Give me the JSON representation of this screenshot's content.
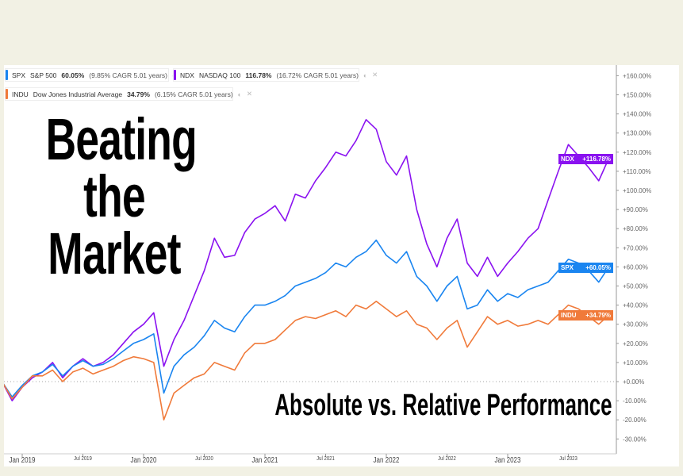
{
  "title": "Beating the Market",
  "subtitle": "Absolute vs. Relative Performance",
  "legend": [
    {
      "ticker": "SPX",
      "name": "S&P 500",
      "pct": "60.05%",
      "cagr": "(9.85% CAGR 5.01 years)",
      "color": "#1a85f0"
    },
    {
      "ticker": "NDX",
      "name": "NASDAQ 100",
      "pct": "116.78%",
      "cagr": "(16.72% CAGR 5.01 years)",
      "color": "#8a12f0"
    },
    {
      "ticker": "INDU",
      "name": "Dow Jones Industrial Average",
      "pct": "34.79%",
      "cagr": "(6.15% CAGR 5.01 years)",
      "color": "#f07a3a"
    }
  ],
  "end_labels": [
    {
      "ticker": "NDX",
      "value": "+116.78%",
      "color": "#8a12f0"
    },
    {
      "ticker": "SPX",
      "value": "+60.05%",
      "color": "#1a85f0"
    },
    {
      "ticker": "INDU",
      "value": "+34.79%",
      "color": "#f07a3a"
    }
  ],
  "chart_data": {
    "type": "line",
    "ylim": [
      -30,
      160
    ],
    "y_ticks": [
      "+160.00%",
      "+150.00%",
      "+140.00%",
      "+130.00%",
      "+120.00%",
      "+110.00%",
      "+100.00%",
      "+90.00%",
      "+80.00%",
      "+70.00%",
      "+60.00%",
      "+50.00%",
      "+40.00%",
      "+30.00%",
      "+20.00%",
      "+10.00%",
      "+0.00%",
      "-10.00%",
      "-20.00%",
      "-30.00%"
    ],
    "x_ticks": [
      {
        "label": "Jan 2019",
        "date": "2019-01",
        "major": true
      },
      {
        "label": "Jul 2019",
        "date": "2019-07",
        "major": false
      },
      {
        "label": "Jan 2020",
        "date": "2020-01",
        "major": true
      },
      {
        "label": "Jul 2020",
        "date": "2020-07",
        "major": false
      },
      {
        "label": "Jan 2021",
        "date": "2021-01",
        "major": true
      },
      {
        "label": "Jul 2021",
        "date": "2021-07",
        "major": false
      },
      {
        "label": "Jan 2022",
        "date": "2022-01",
        "major": true
      },
      {
        "label": "Jul 2022",
        "date": "2022-07",
        "major": false
      },
      {
        "label": "Jan 2023",
        "date": "2023-01",
        "major": true
      },
      {
        "label": "Jul 2023",
        "date": "2023-07",
        "major": false
      }
    ],
    "x_start": "2018-11",
    "series": [
      {
        "name": "NDX",
        "color": "#8a12f0",
        "values": [
          0,
          -10,
          -3,
          2,
          5,
          10,
          2,
          8,
          12,
          8,
          10,
          14,
          20,
          26,
          30,
          36,
          8,
          22,
          32,
          45,
          58,
          75,
          65,
          66,
          78,
          85,
          88,
          92,
          84,
          98,
          96,
          105,
          112,
          120,
          118,
          126,
          137,
          132,
          115,
          108,
          118,
          90,
          72,
          60,
          75,
          85,
          62,
          55,
          65,
          55,
          62,
          68,
          75,
          80,
          95,
          110,
          124,
          118,
          112,
          105,
          116.78
        ]
      },
      {
        "name": "SPX",
        "color": "#1a85f0",
        "values": [
          0,
          -8,
          -2,
          3,
          5,
          9,
          3,
          8,
          11,
          8,
          9,
          12,
          16,
          20,
          22,
          25,
          -6,
          8,
          14,
          18,
          24,
          32,
          28,
          26,
          34,
          40,
          40,
          42,
          45,
          50,
          52,
          54,
          57,
          62,
          60,
          65,
          68,
          74,
          66,
          62,
          68,
          55,
          50,
          42,
          50,
          55,
          38,
          40,
          48,
          42,
          46,
          44,
          48,
          50,
          52,
          58,
          64,
          62,
          58,
          52,
          60.05
        ]
      },
      {
        "name": "INDU",
        "color": "#f07a3a",
        "values": [
          0,
          -9,
          -3,
          3,
          3,
          6,
          0,
          5,
          7,
          4,
          6,
          8,
          11,
          13,
          12,
          10,
          -20,
          -6,
          -2,
          2,
          4,
          10,
          8,
          6,
          15,
          20,
          20,
          22,
          27,
          32,
          34,
          33,
          35,
          37,
          34,
          40,
          38,
          42,
          38,
          34,
          37,
          30,
          28,
          22,
          28,
          32,
          18,
          26,
          34,
          30,
          32,
          29,
          30,
          32,
          30,
          35,
          40,
          38,
          34,
          30,
          34.79
        ]
      }
    ]
  }
}
